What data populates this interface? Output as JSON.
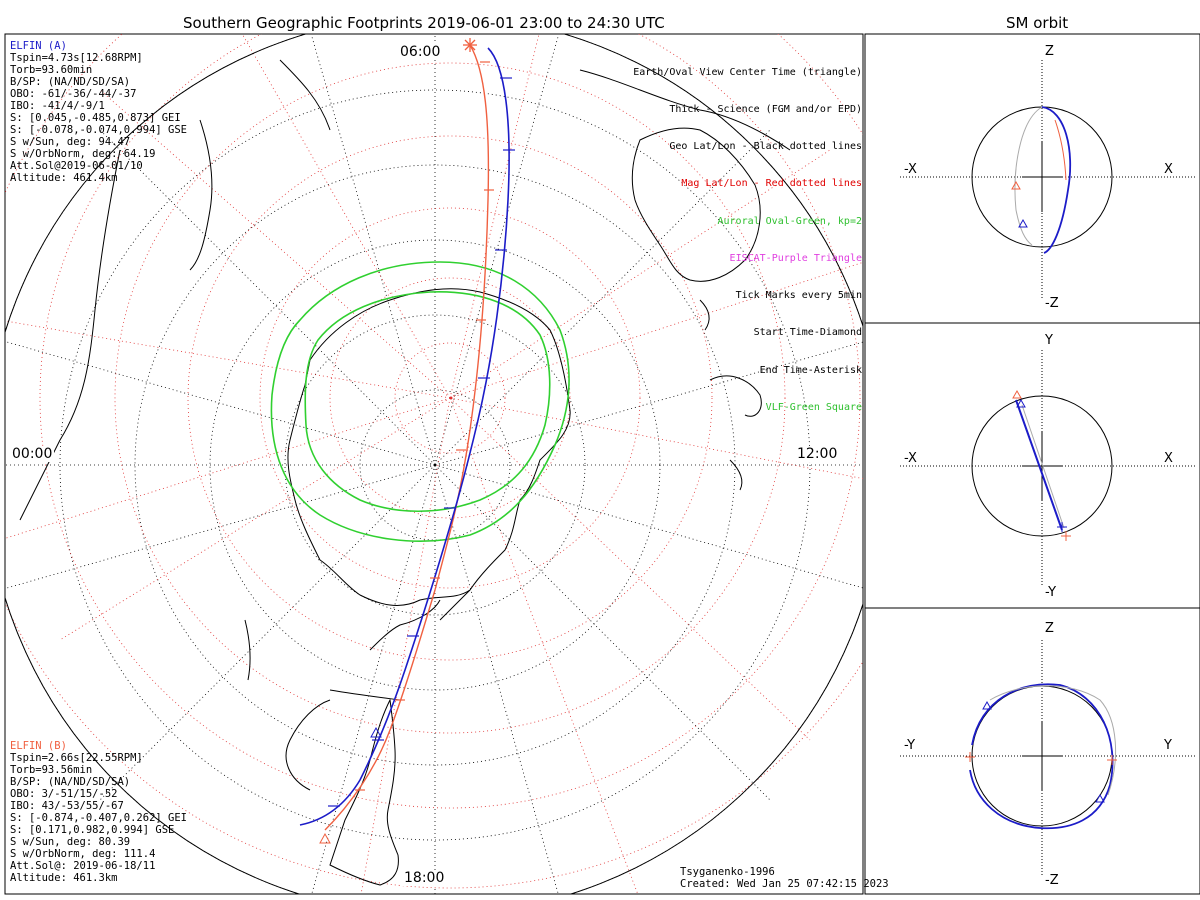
{
  "title": "Southern Geographic Footprints 2019-06-01 23:00 to 24:30 UTC",
  "right_title": "SM orbit",
  "hours": {
    "top": "06:00",
    "left": "00:00",
    "right": "12:00",
    "bottom": "18:00"
  },
  "elfin_a": {
    "name": "ELFIN (A)",
    "color": "#1c1cc8",
    "lines": [
      "Tspin=4.73s[12.68RPM]",
      "Torb=93.60min",
      "B/SP: (NA/ND/SD/SA)",
      "OBO: -61/-36/-44/-37",
      "IBO: -41/4/-9/1",
      "S: [0.045,-0.485,0.873] GEI",
      "S: [-0.078,-0.074,0.994] GSE",
      "S w/Sun, deg: 94.47",
      "S w/OrbNorm, deg: 64.19",
      "Att.Sol@2019-06-01/10",
      "Altitude: 461.4km"
    ]
  },
  "elfin_b": {
    "name": "ELFIN (B)",
    "color": "#f06040",
    "lines": [
      "Tspin=2.66s[22.55RPM]",
      "Torb=93.56min",
      "B/SP: (NA/ND/SD/SA)",
      "OBO: 3/-51/15/-52",
      "IBO: 43/-53/55/-67",
      "S: [-0.874,-0.407,0.262] GEI",
      "S: [0.171,0.982,0.994] GSE",
      "S w/Sun, deg: 80.39",
      "S w/OrbNorm, deg: 111.4",
      "Att.Sol@: 2019-06-18/11",
      "Altitude: 461.3km"
    ]
  },
  "legend": [
    {
      "text": "Earth/Oval View Center Time (triangle)",
      "color": "#000000"
    },
    {
      "text": "Thick - Science (FGM and/or EPD)",
      "color": "#000000"
    },
    {
      "text": "Geo Lat/Lon - Black dotted lines",
      "color": "#000000"
    },
    {
      "text": "Mag Lat/Lon - Red dotted lines",
      "color": "#e00000"
    },
    {
      "text": "Auroral Oval-Green, kp=2",
      "color": "#30c030"
    },
    {
      "text": "EISCAT-Purple Triangle",
      "color": "#e040e0"
    },
    {
      "text": "Tick Marks every 5min",
      "color": "#000000"
    },
    {
      "text": "Start Time-Diamond",
      "color": "#000000"
    },
    {
      "text": "End Time-Asterisk",
      "color": "#000000"
    },
    {
      "text": "VLF-Green Square",
      "color": "#30c030"
    }
  ],
  "footer": {
    "model": "Tsyganenko-1996",
    "created": "Created: Wed Jan 25 07:42:15 2023"
  },
  "panels": [
    {
      "top": "Z",
      "bottom": "-Z",
      "left": "-X",
      "right": "X"
    },
    {
      "top": "Y",
      "bottom": "-Y",
      "left": "-X",
      "right": "X"
    },
    {
      "top": "Z",
      "bottom": "-Z",
      "left": "-Y",
      "right": "Y"
    }
  ],
  "colors": {
    "aurora": "#30d030",
    "mag_grid": "#e03030",
    "geo_grid": "#000000"
  }
}
